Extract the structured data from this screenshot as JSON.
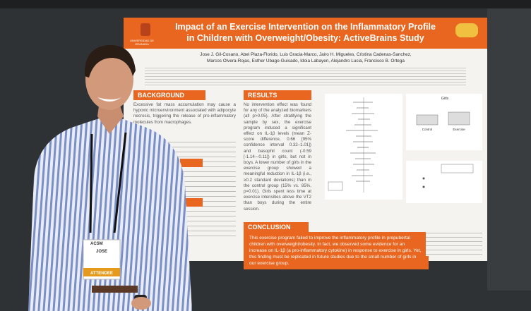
{
  "poster": {
    "title_line1": "Impact of an Exercise Intervention on the Inflammatory Profile",
    "title_line2": "in Children with Overweight/Obesity: ActiveBrains Study",
    "authors_line1": "Jose J. Gil-Cosano, Abel Plaza-Florido, Luis Gracia-Marco, Jairo H. Migueles, Cristina Cadenas-Sanchez,",
    "authors_line2": "Marcos Olvera-Rojas, Esther Ubago-Guisado, Idoia Labayen, Alejandro Lucia, Francisco B. Ortega",
    "university": "UNIVERSIDAD DE GRANADA",
    "sections": {
      "background": {
        "heading": "BACKGROUND",
        "text": "Excessive fat mass accumulation may cause a hypoxic microenvironment associated with adipocyte necrosis, triggering the release of pro-inflammatory molecules from macrophages."
      },
      "results": {
        "heading": "RESULTS",
        "text": "No intervention effect was found for any of the analyzed biomarkers (all p>0.05). After stratifying the sample by sex, the exercise program induced a significant effect on IL-1β levels (mean Z-score difference, 0.66 [95% confidence interval 0.32–1.01]) and basophil count (-0.59 [-1.14–-0.11]) in girls, but not in boys. A lower number of girls in the exercise group showed a meaningful reduction in IL-1β (i.e., ≥0.2 standard deviations) than in the control group (15% vs. 85%, p=0.01). Girls spent less time at exercise intensities above the VT2 than boys during the entire session."
      },
      "conclusion": {
        "heading": "CONCLUSION",
        "text": "This exercise program failed to improve the inflammatory profile in prepubertal children with overweight/obesity. In fact, we observed some evidence for an increase on IL-1β (a pro-inflammatory cytokine) in response to exercise in girls. Yet, this finding must be replicated in future studies due to the small number of girls in our exercise group."
      }
    },
    "plot_labels": {
      "girls": "Girls",
      "control": "Control",
      "exercise": "Exercise"
    }
  },
  "badge": {
    "org": "ACSM",
    "name": "JOSE",
    "role": "ATTENDEE"
  }
}
